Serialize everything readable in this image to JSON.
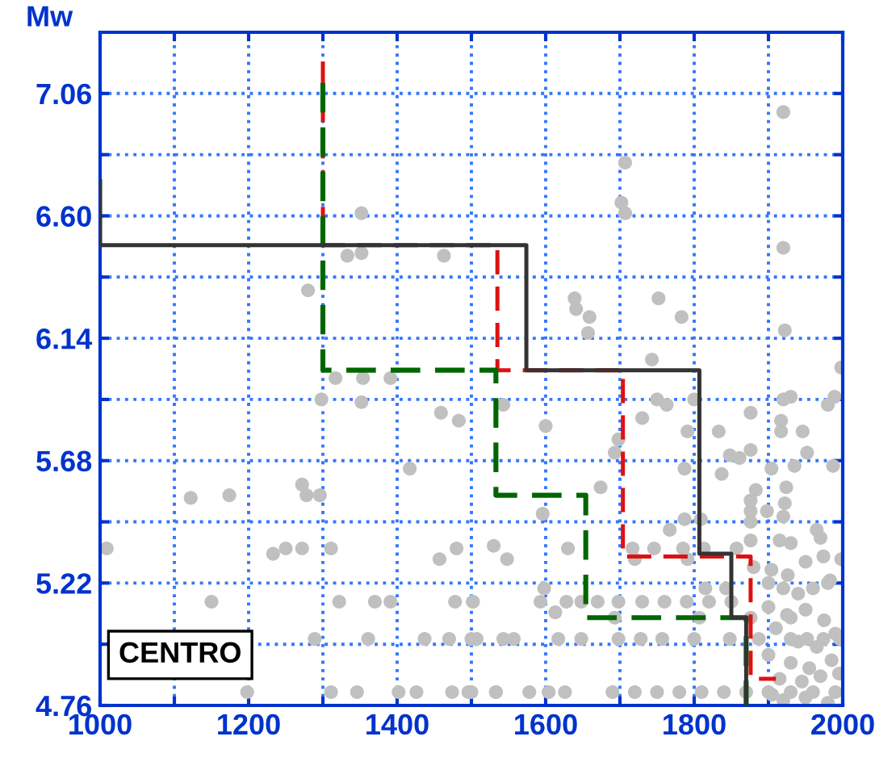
{
  "chart_data": {
    "type": "scatter",
    "ylabel": "Mw",
    "xlim": [
      1000,
      2000
    ],
    "ylim": [
      4.76,
      7.29
    ],
    "xticks": [
      1000,
      {
        "value": 1100,
        "label": null
      },
      1200,
      {
        "value": 1300,
        "label": null
      },
      1400,
      {
        "value": 1500,
        "label": null
      },
      1600,
      {
        "value": 1700,
        "label": null
      },
      1800,
      {
        "value": 1900,
        "label": null
      },
      2000
    ],
    "yticks": [
      {
        "value": 4.76,
        "label": "4.76"
      },
      {
        "value": 4.99,
        "label": null
      },
      {
        "value": 5.22,
        "label": "5.22"
      },
      {
        "value": 5.45,
        "label": null
      },
      {
        "value": 5.68,
        "label": "5.68"
      },
      {
        "value": 5.91,
        "label": null
      },
      {
        "value": 6.14,
        "label": "6.14"
      },
      {
        "value": 6.37,
        "label": null
      },
      {
        "value": 6.6,
        "label": "6.60"
      },
      {
        "value": 6.83,
        "label": null
      },
      {
        "value": 7.06,
        "label": "7.06"
      }
    ],
    "grid": true,
    "annotations": [
      "CENTRO"
    ],
    "series": [
      {
        "color": "#c0c0c0",
        "marker": "circle",
        "x": [
          1920,
          1707,
          1702,
          1707,
          1920,
          1352,
          1333,
          1352,
          1463,
          1280,
          1639,
          1659,
          1752,
          1783,
          1743,
          1641,
          1657,
          1922,
          1998,
          1317,
          1354,
          1391,
          1298,
          1352,
          1459,
          1483,
          1417,
          1122,
          1174,
          1272,
          1278,
          1296,
          1009,
          1233,
          1250,
          1272,
          1311,
          1457,
          1480,
          1150,
          1322,
          1370,
          1391,
          1478,
          1502,
          1289,
          1361,
          1437,
          1470,
          1507,
          1198,
          1311,
          1346,
          1402,
          1426,
          1474,
          1496,
          1533,
          1543,
          1600,
          1730,
          1750,
          1763,
          1800,
          1698,
          1693,
          1791,
          1833,
          1787,
          1837,
          1848,
          1861,
          1876,
          1876,
          1920,
          1930,
          1980,
          1989,
          1917,
          1917,
          1946,
          1952,
          1904,
          1935,
          1987,
          1674,
          1596,
          1883,
          1876,
          1876,
          1876,
          1898,
          1924,
          1922,
          1920,
          1787,
          1809,
          1767,
          1965,
          1970,
          1530,
          1548,
          1630,
          1717,
          1746,
          1785,
          1813,
          1720,
          1791,
          1857,
          1876,
          1915,
          1930,
          1998,
          1974,
          1880,
          1904,
          1926,
          1950,
          1983,
          1598,
          1815,
          1843,
          1502,
          1593,
          1628,
          1648,
          1670,
          1613,
          1698,
          1730,
          1760,
          1790,
          1820,
          1850,
          1693,
          1807,
          1876,
          1930,
          1500,
          1543,
          1557,
          1617,
          1648,
          1698,
          1728,
          1757,
          1800,
          1848,
          1887,
          1930,
          1952,
          1974,
          1996,
          1500,
          1533,
          1578,
          1604,
          1626,
          1690,
          1720,
          1750,
          1780,
          1810,
          1840,
          1870,
          1900,
          1930,
          1960,
          1990,
          1900,
          1920,
          1940,
          1960,
          1980,
          1900,
          1925,
          1950,
          1975,
          1910,
          1940,
          1965,
          1990,
          1900,
          1930,
          1955,
          1985,
          1915,
          1945,
          1970,
          1995,
          1920,
          1950,
          1980,
          1905
        ],
        "values": [
          6.99,
          6.8,
          6.65,
          6.61,
          6.48,
          6.61,
          6.45,
          6.46,
          6.45,
          6.32,
          6.29,
          6.22,
          6.29,
          6.22,
          6.06,
          6.25,
          6.16,
          6.17,
          6.03,
          5.99,
          5.99,
          5.99,
          5.91,
          5.9,
          5.86,
          5.83,
          5.65,
          5.54,
          5.55,
          5.59,
          5.55,
          5.55,
          5.35,
          5.33,
          5.35,
          5.35,
          5.35,
          5.31,
          5.35,
          5.15,
          5.15,
          5.15,
          5.15,
          5.15,
          5.15,
          5.01,
          5.01,
          5.01,
          5.01,
          5.01,
          4.81,
          4.81,
          4.81,
          4.81,
          4.81,
          4.81,
          4.81,
          4.81,
          5.89,
          5.81,
          5.84,
          5.91,
          5.89,
          5.91,
          5.76,
          5.71,
          5.79,
          5.79,
          5.65,
          5.63,
          5.7,
          5.69,
          5.72,
          5.86,
          5.91,
          5.92,
          5.89,
          5.92,
          5.83,
          5.79,
          5.79,
          5.71,
          5.65,
          5.66,
          5.66,
          5.58,
          5.48,
          5.57,
          5.53,
          5.49,
          5.45,
          5.49,
          5.58,
          5.52,
          5.47,
          5.46,
          5.46,
          5.42,
          5.42,
          5.39,
          5.36,
          5.31,
          5.35,
          5.35,
          5.35,
          5.35,
          5.35,
          5.31,
          5.31,
          5.35,
          5.38,
          5.38,
          5.37,
          5.31,
          5.32,
          5.28,
          5.27,
          5.25,
          5.3,
          5.23,
          5.2,
          5.2,
          5.2,
          5.15,
          5.15,
          5.15,
          5.15,
          5.15,
          5.11,
          5.15,
          5.15,
          5.15,
          5.15,
          5.15,
          5.15,
          5.09,
          5.09,
          5.09,
          5.09,
          5.01,
          5.01,
          5.01,
          5.01,
          5.01,
          5.01,
          5.01,
          5.01,
          5.01,
          5.01,
          5.01,
          5.01,
          5.01,
          5.01,
          5.01,
          4.81,
          4.81,
          4.81,
          4.81,
          4.81,
          4.81,
          4.81,
          4.81,
          4.81,
          4.81,
          4.81,
          4.81,
          4.81,
          4.81,
          4.81,
          4.81,
          5.22,
          5.2,
          5.18,
          5.2,
          5.22,
          5.13,
          5.1,
          5.12,
          5.08,
          5.05,
          5.0,
          4.98,
          5.03,
          4.95,
          4.92,
          4.9,
          4.93,
          4.86,
          4.85,
          4.87,
          4.88,
          4.78,
          4.79,
          4.77,
          4.8
        ]
      },
      {
        "type": "line",
        "color": "#333333",
        "line_style": "solid",
        "x": [
          1000,
          1000,
          1574,
          1574,
          1807,
          1807,
          1850,
          1850,
          1870,
          1870
        ],
        "values": [
          6.73,
          6.49,
          6.49,
          6.02,
          6.02,
          5.33,
          5.33,
          5.09,
          5.09,
          4.76
        ]
      },
      {
        "type": "line",
        "color": "#006600",
        "line_style": "dashed",
        "x": [
          1300,
          1300,
          1533,
          1533,
          1654,
          1654,
          1870,
          1870
        ],
        "values": [
          7.1,
          6.02,
          6.02,
          5.55,
          5.55,
          5.09,
          5.09,
          4.76
        ]
      },
      {
        "type": "line",
        "color": "#dd1111",
        "line_style": "dashed",
        "x": [
          1300,
          1300,
          1535,
          1535,
          1704,
          1704,
          1876,
          1876,
          1910
        ],
        "values": [
          7.18,
          6.49,
          6.49,
          6.02,
          6.02,
          5.32,
          5.32,
          4.86,
          4.86
        ]
      }
    ]
  }
}
